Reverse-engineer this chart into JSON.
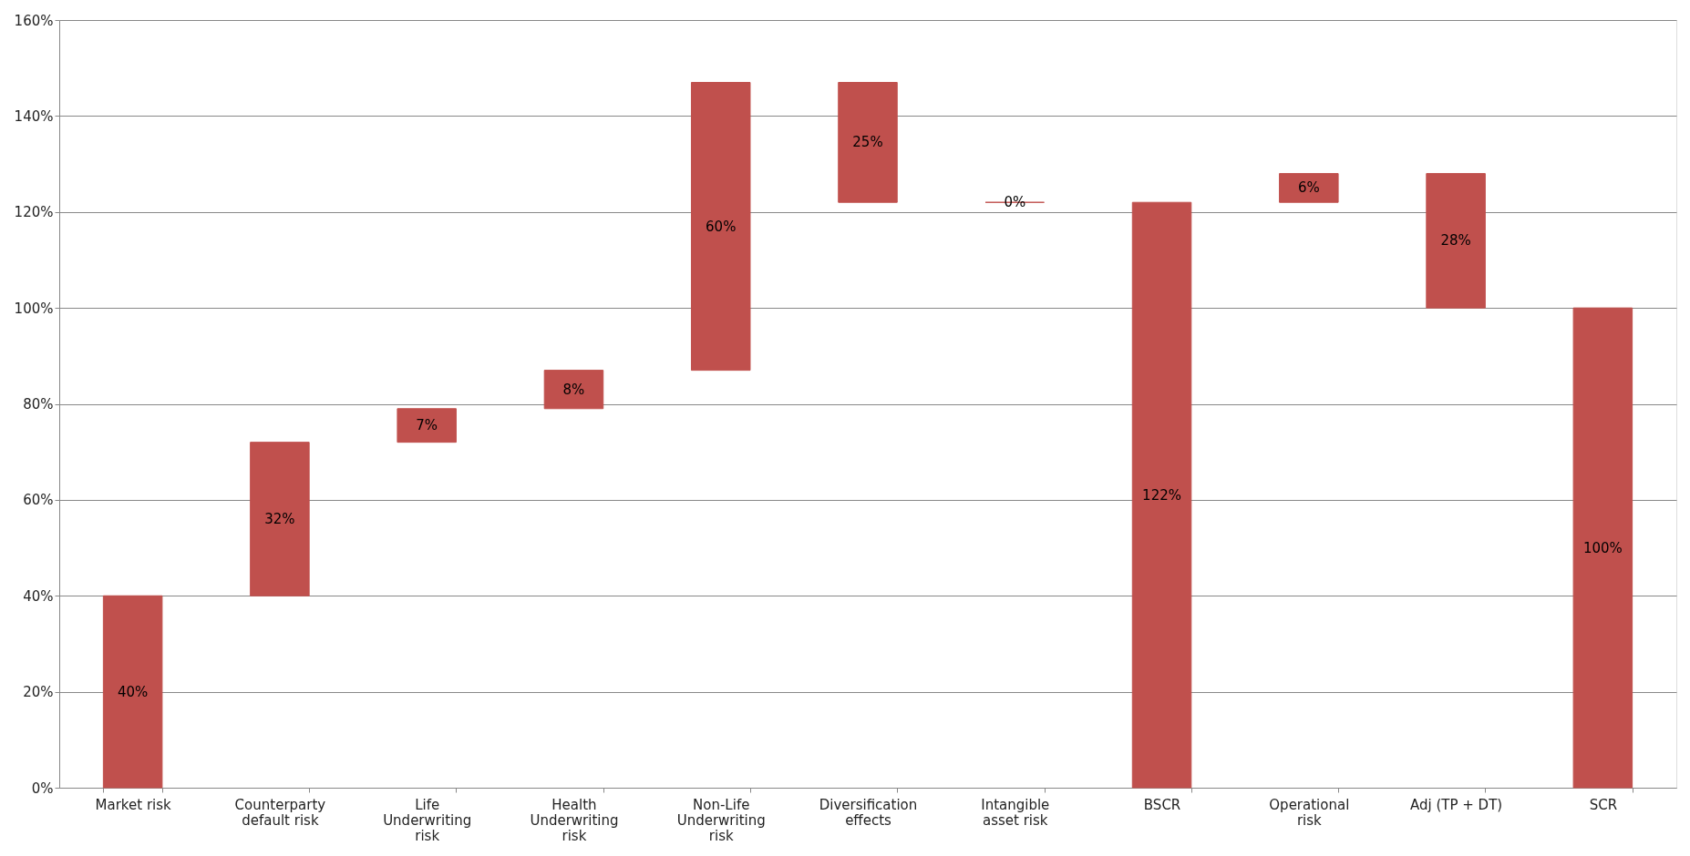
{
  "chart_data": {
    "type": "bar",
    "categories": [
      "Market risk",
      "Counterparty default risk",
      "Life Underwriting risk",
      "Health Underwriting risk",
      "Non-Life Underwriting risk",
      "Diversification effects",
      "Intangible asset risk",
      "BSCR",
      "Operational risk",
      "Adj (TP + DT)",
      "SCR"
    ],
    "values": [
      40,
      32,
      7,
      8,
      60,
      25,
      0,
      122,
      6,
      28,
      100
    ],
    "base": [
      0,
      40,
      72,
      79,
      87,
      122,
      122,
      0,
      122,
      100,
      0
    ],
    "value_labels": [
      "40%",
      "32%",
      "7%",
      "8%",
      "60%",
      "25%",
      "0%",
      "122%",
      "6%",
      "28%",
      "100%"
    ],
    "color": "#c0504d",
    "ylim": [
      0,
      160
    ],
    "yticks": [
      {
        "value": 0,
        "label": "0%"
      },
      {
        "value": 20,
        "label": "20%"
      },
      {
        "value": 40,
        "label": "40%"
      },
      {
        "value": 60,
        "label": "60%"
      },
      {
        "value": 80,
        "label": "80%"
      },
      {
        "value": 100,
        "label": "100%"
      },
      {
        "value": 120,
        "label": "120%"
      },
      {
        "value": 140,
        "label": "140%"
      },
      {
        "value": 160,
        "label": "160%"
      }
    ],
    "grid": "y"
  }
}
